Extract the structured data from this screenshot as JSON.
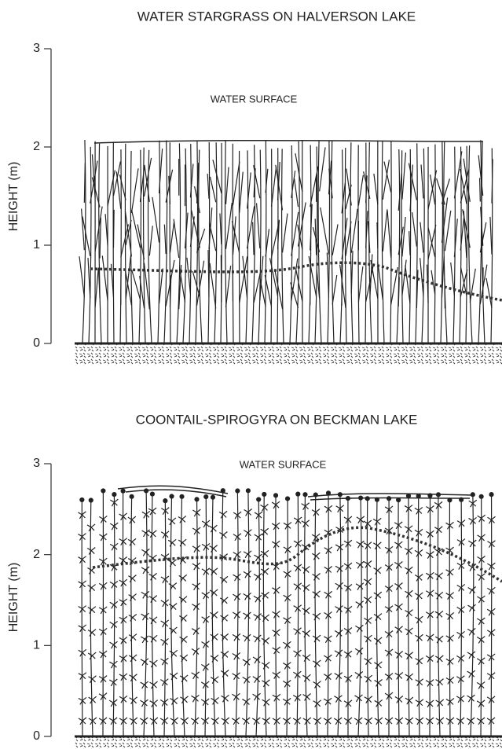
{
  "panels": [
    {
      "title": "WATER STARGRASS ON HALVERSON LAKE",
      "annotation": "WATER SURFACE",
      "y_axis_label": "HEIGHT (m)",
      "ylim": [
        0,
        3
      ],
      "yticks": [
        0,
        1,
        2,
        3
      ]
    },
    {
      "title": "COONTAIL-SPIROGYRA ON BECKMAN LAKE",
      "annotation": "WATER SURFACE",
      "y_axis_label": "HEIGHT (m)",
      "ylim": [
        0,
        3
      ],
      "yticks": [
        0,
        1,
        2,
        3
      ]
    }
  ]
}
